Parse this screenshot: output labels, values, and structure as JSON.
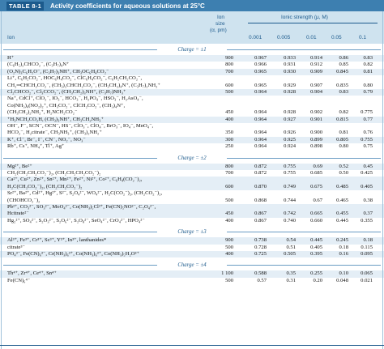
{
  "table": {
    "tag": "TABLE 8-1",
    "title": "Activity coefficients for aqueous solutions at 25°C",
    "header": {
      "ion": "Ion",
      "size_line1": "Ion",
      "size_line2": "size",
      "size_line3": "(α, pm)",
      "ionic_strength": "Ionic strength (μ, M)",
      "strengths": [
        "0.001",
        "0.005",
        "0.01",
        "0.05",
        "0.1"
      ]
    },
    "groups": [
      {
        "charge": "Charge = ±1",
        "rows": [
          {
            "ion": "H⁺",
            "size": "900",
            "values": [
              "0.967",
              "0.933",
              "0.914",
              "0.86",
              "0.83"
            ]
          },
          {
            "ion": "(C₆H₅)₂CHCO₂⁻, (C₃H₇)₄N⁺",
            "size": "800",
            "values": [
              "0.966",
              "0.931",
              "0.912",
              "0.85",
              "0.82"
            ]
          },
          {
            "ion": "(O₂N)₃C₆H₂O⁻, (C₃H₇)₃NH⁺, CH₃OC₆H₄CO₂⁻",
            "size": "700",
            "values": [
              "0.965",
              "0.930",
              "0.909",
              "0.845",
              "0.81"
            ]
          },
          {
            "ion": "Li⁺, C₆H₅CO₂⁻, HOC₆H₄CO₂⁻, ClC₆H₄CO₂⁻, C₆H₅CH₂CO₂⁻,",
            "size": "",
            "values": [
              "",
              "",
              "",
              "",
              ""
            ]
          },
          {
            "ion": "CH₂═CHCH₂CO₂⁻, (CH₃)₂CHCH₂CO₂⁻, (CH₃CH₂)₄N⁺, (C₃H₇)₂NH₂⁺",
            "size": "600",
            "values": [
              "0.965",
              "0.929",
              "0.907",
              "0.835",
              "0.80"
            ]
          },
          {
            "ion": "Cl₂CHCO₂⁻, Cl₃CCO₂⁻, (CH₃CH₂)₃NH⁺, (C₃H₇)NH₃⁺",
            "size": "500",
            "values": [
              "0.964",
              "0.928",
              "0.904",
              "0.83",
              "0.79"
            ]
          },
          {
            "ion": "Na⁺, CdCl⁺, ClO₂⁻, IO₃⁻, HCO₃⁻, H₂PO₄⁻, HSO₃⁻, H₂AsO₄⁻,",
            "size": "",
            "values": [
              "",
              "",
              "",
              "",
              ""
            ]
          },
          {
            "ion": "Co(NH₃)₄(NO₂)₂⁺, CH₃CO₂⁻, ClCH₂CO₂⁻, (CH₃)₄N⁺,",
            "size": "",
            "values": [
              "",
              "",
              "",
              "",
              ""
            ]
          },
          {
            "ion": "(CH₃CH₂)₂NH₂⁺, H₂NCH₂CO₂⁻",
            "size": "450",
            "values": [
              "0.964",
              "0.928",
              "0.902",
              "0.82",
              "0.775"
            ]
          },
          {
            "ion": "⁺H₃NCH₂CO₂H, (CH₃)₃NH⁺, CH₃CH₂NH₃⁺",
            "size": "400",
            "values": [
              "0.964",
              "0.927",
              "0.901",
              "0.815",
              "0.77"
            ]
          },
          {
            "ion": "OH⁻, F⁻, SCN⁻, OCN⁻, HS⁻, ClO₃⁻, ClO₄⁻, BrO₃⁻, IO₄⁻, MnO₄⁻,",
            "size": "",
            "values": [
              "",
              "",
              "",
              "",
              ""
            ]
          },
          {
            "ion": "HCO₂⁻, H₂citrate⁻, CH₃NH₃⁺, (CH₃)₂NH₂⁺",
            "size": "350",
            "values": [
              "0.964",
              "0.926",
              "0.900",
              "0.81",
              "0.76"
            ]
          },
          {
            "ion": "K⁺, Cl⁻, Br⁻, I⁻, CN⁻, NO₂⁻, NO₃⁻",
            "size": "300",
            "values": [
              "0.964",
              "0.925",
              "0.899",
              "0.805",
              "0.755"
            ]
          },
          {
            "ion": "Rb⁺, Cs⁺, NH₄⁺, Tl⁺, Ag⁺",
            "size": "250",
            "values": [
              "0.964",
              "0.924",
              "0.898",
              "0.80",
              "0.75"
            ]
          }
        ]
      },
      {
        "charge": "Charge = ±2",
        "rows": [
          {
            "ion": "Mg²⁺, Be²⁺",
            "size": "800",
            "values": [
              "0.872",
              "0.755",
              "0.69",
              "0.52",
              "0.45"
            ]
          },
          {
            "ion": "CH₂(CH₂CH₂CO₂⁻)₂, (CH₂CH₂CH₂CO₂⁻)₂",
            "size": "700",
            "values": [
              "0.872",
              "0.755",
              "0.685",
              "0.50",
              "0.425"
            ]
          },
          {
            "ion": "Ca²⁺, Cu²⁺, Zn²⁺, Sn²⁺, Mn²⁺, Fe²⁺, Ni²⁺, Co²⁺, C₆H₄(CO₂⁻)₂,",
            "size": "",
            "values": [
              "",
              "",
              "",
              "",
              ""
            ]
          },
          {
            "ion": "H₂C(CH₂CO₂⁻)₂, (CH₂CH₂CO₂⁻)₂",
            "size": "600",
            "values": [
              "0.870",
              "0.749",
              "0.675",
              "0.485",
              "0.405"
            ]
          },
          {
            "ion": "Sr²⁺, Ba²⁺, Cd²⁺, Hg²⁺, S²⁻, S₂O₄²⁻, WO₄²⁻, H₂C(CO₂⁻)₂, (CH₂CO₂⁻)₂,",
            "size": "",
            "values": [
              "",
              "",
              "",
              "",
              ""
            ]
          },
          {
            "ion": "(CHOHCO₂⁻)₂",
            "size": "500",
            "values": [
              "0.868",
              "0.744",
              "0.67",
              "0.465",
              "0.38"
            ]
          },
          {
            "ion": "Pb²⁺, CO₃²⁻, SO₃²⁻, MoO₄²⁻, Co(NH₃)₅Cl²⁺, Fe(CN)₅NO²⁻, C₂O₄²⁻,",
            "size": "",
            "values": [
              "",
              "",
              "",
              "",
              ""
            ]
          },
          {
            "ion": "Hcitrate²⁻",
            "size": "450",
            "values": [
              "0.867",
              "0.742",
              "0.665",
              "0.455",
              "0.37"
            ]
          },
          {
            "ion": "Hg₂²⁺, SO₄²⁻, S₂O₃²⁻, S₂O₆²⁻, S₂O₈²⁻, SeO₄²⁻, CrO₄²⁻, HPO₄²⁻",
            "size": "400",
            "values": [
              "0.867",
              "0.740",
              "0.660",
              "0.445",
              "0.355"
            ]
          }
        ]
      },
      {
        "charge": "Charge = ±3",
        "rows": [
          {
            "ion": "Al³⁺, Fe³⁺, Cr³⁺, Sc³⁺, Y³⁺, In³⁺, lanthanides*",
            "size": "900",
            "values": [
              "0.738",
              "0.54",
              "0.445",
              "0.245",
              "0.18"
            ]
          },
          {
            "ion": "citrate³⁻",
            "size": "500",
            "values": [
              "0.728",
              "0.51",
              "0.405",
              "0.18",
              "0.115"
            ]
          },
          {
            "ion": "PO₄³⁻, Fe(CN)₆³⁻, Cr(NH₃)₆³⁺, Co(NH₃)₆³⁺, Co(NH₃)₅H₂O³⁺",
            "size": "400",
            "values": [
              "0.725",
              "0.505",
              "0.395",
              "0.16",
              "0.095"
            ]
          }
        ]
      },
      {
        "charge": "Charge = ±4",
        "rows": [
          {
            "ion": "Th⁴⁺, Zr⁴⁺, Ce⁴⁺, Sn⁴⁺",
            "size": "1 100",
            "values": [
              "0.588",
              "0.35",
              "0.255",
              "0.10",
              "0.065"
            ]
          },
          {
            "ion": "Fe(CN)₆⁴⁻",
            "size": "500",
            "values": [
              "0.57",
              "0.31",
              "0.20",
              "0.048",
              "0.021"
            ]
          }
        ]
      }
    ]
  }
}
